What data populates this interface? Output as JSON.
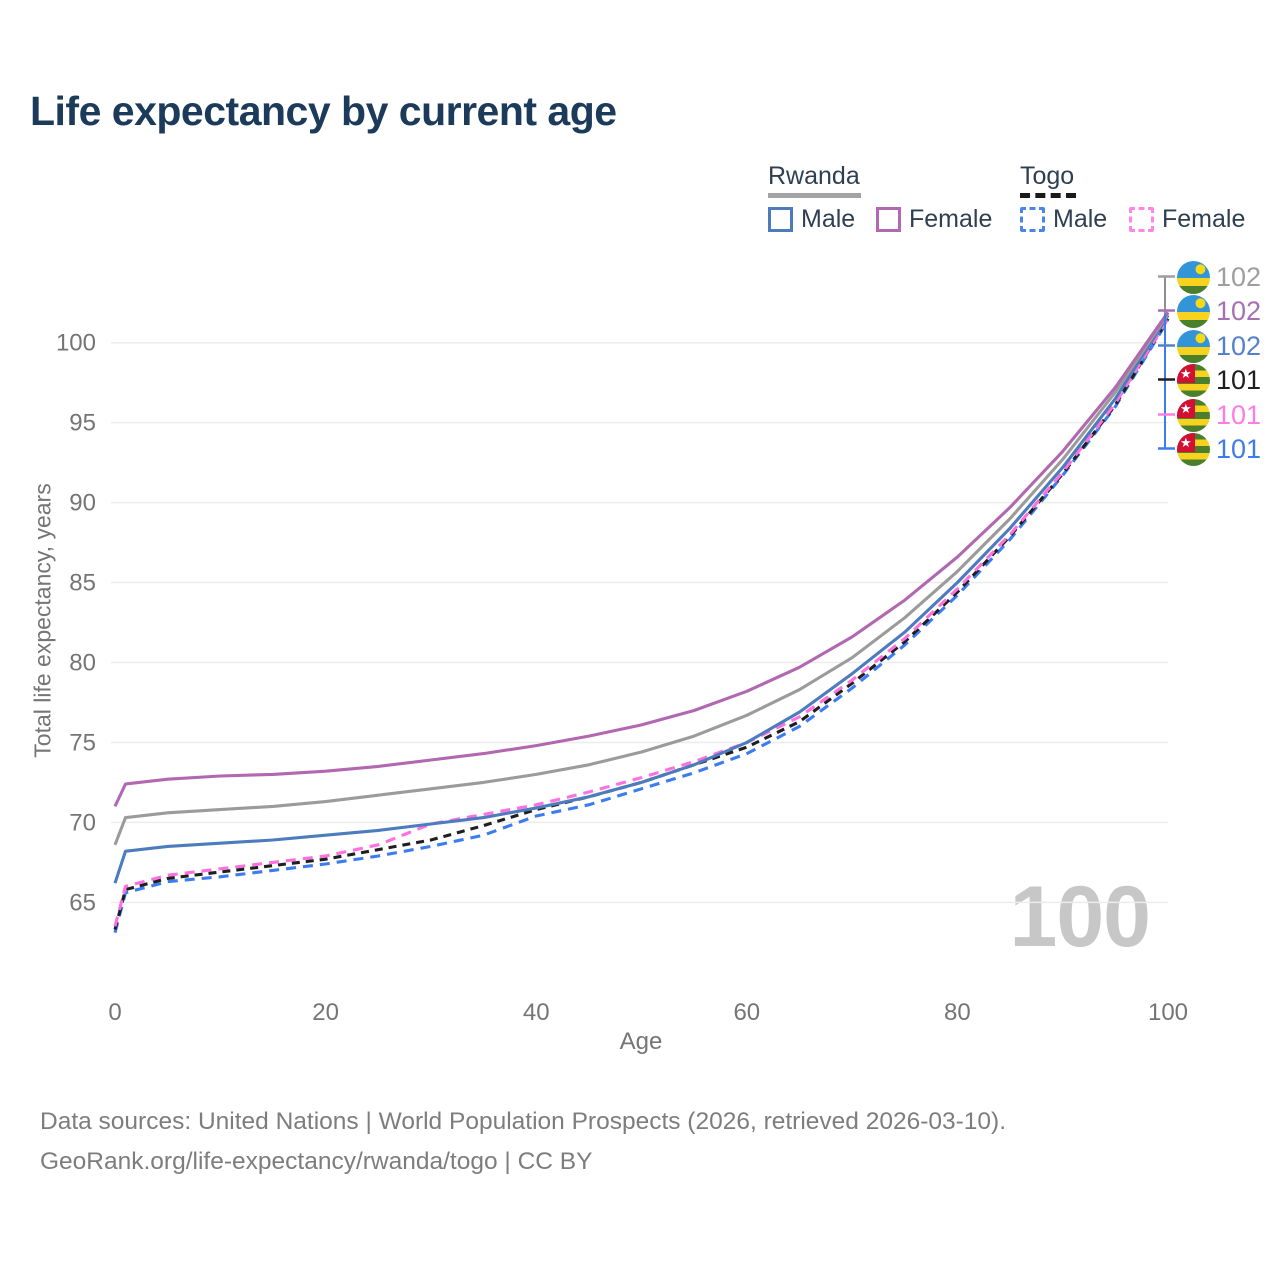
{
  "header": {
    "title": "Life expectancy by current age"
  },
  "legend": {
    "groups": [
      {
        "label": "Rwanda",
        "line_style": "solid",
        "underline_color": "#a3a3a3",
        "items": [
          {
            "label": "Male",
            "color": "#4c7cbe"
          },
          {
            "label": "Female",
            "color": "#b168b1"
          }
        ]
      },
      {
        "label": "Togo",
        "line_style": "dashed",
        "underline_color": "#1a1a1a",
        "items": [
          {
            "label": "Male",
            "color": "#4a86ea"
          },
          {
            "label": "Female",
            "color": "#ff85e6"
          }
        ]
      }
    ]
  },
  "end_labels": [
    {
      "value": "102",
      "series": "Rwanda All",
      "flag": "rwanda",
      "color": "#9e9e9e"
    },
    {
      "value": "102",
      "series": "Rwanda Female",
      "flag": "rwanda",
      "color": "#a76fb5"
    },
    {
      "value": "102",
      "series": "Rwanda Male",
      "flag": "rwanda",
      "color": "#5581c9"
    },
    {
      "value": "101",
      "series": "Togo All",
      "flag": "togo",
      "color": "#1f1f1f"
    },
    {
      "value": "101",
      "series": "Togo Female",
      "flag": "togo",
      "color": "#ff7ce1"
    },
    {
      "value": "101",
      "series": "Togo Male",
      "flag": "togo",
      "color": "#3d7bf0"
    }
  ],
  "leader": {
    "top_color": "#8f8f8f",
    "bottom_color": "#3d7bf0"
  },
  "watermark": {
    "text": "100",
    "color": "#c7c7c7"
  },
  "footer": {
    "line1": "Data sources: United Nations | World Population Prospects (2026, retrieved 2026-03-10).",
    "line2": "GeoRank.org/life-expectancy/rwanda/togo | CC BY"
  },
  "chart_data": {
    "type": "line",
    "title": "Life expectancy by current age",
    "xlabel": "Age",
    "ylabel": "Total life expectancy, years",
    "xlim": [
      0,
      100
    ],
    "ylim": [
      62,
      103
    ],
    "xticks": [
      0,
      20,
      40,
      60,
      80,
      100
    ],
    "yticks": [
      65,
      70,
      75,
      80,
      85,
      90,
      95,
      100
    ],
    "grid": "horizontal-only",
    "legend_position": "top-right",
    "x": [
      0,
      1,
      5,
      10,
      15,
      20,
      25,
      30,
      35,
      40,
      45,
      50,
      55,
      60,
      65,
      70,
      75,
      80,
      85,
      90,
      95,
      100
    ],
    "series": [
      {
        "name": "Togo Male",
        "country": "Togo",
        "sex": "Male",
        "style": "dashed",
        "color": "#3c7cf0",
        "end_value": 101,
        "values": [
          63.1,
          65.6,
          66.3,
          66.6,
          67.0,
          67.4,
          67.9,
          68.5,
          69.2,
          70.4,
          71.1,
          72.1,
          73.1,
          74.3,
          76.0,
          78.4,
          81.1,
          84.2,
          87.7,
          91.7,
          96.0,
          101.4
        ]
      },
      {
        "name": "Togo All",
        "country": "Togo",
        "sex": "All",
        "style": "dashed",
        "color": "#1f1f1f",
        "end_value": 101,
        "values": [
          63.3,
          65.8,
          66.5,
          66.9,
          67.3,
          67.7,
          68.3,
          68.9,
          69.8,
          70.8,
          71.6,
          72.5,
          73.6,
          74.7,
          76.3,
          78.7,
          81.3,
          84.4,
          87.9,
          91.8,
          96.1,
          101.5
        ]
      },
      {
        "name": "Togo Female",
        "country": "Togo",
        "sex": "Female",
        "style": "dashed",
        "color": "#ff70e0",
        "end_value": 101,
        "values": [
          63.5,
          66.0,
          66.7,
          67.1,
          67.5,
          67.9,
          68.6,
          69.9,
          70.5,
          71.1,
          71.9,
          72.8,
          73.8,
          75.0,
          76.6,
          78.9,
          81.5,
          84.6,
          88.0,
          91.9,
          96.2,
          101.5
        ]
      },
      {
        "name": "Rwanda Male",
        "country": "Rwanda",
        "sex": "Male",
        "style": "solid",
        "color": "#4c7cbe",
        "end_value": 102,
        "values": [
          66.2,
          68.2,
          68.5,
          68.7,
          68.9,
          69.2,
          69.5,
          69.9,
          70.3,
          70.9,
          71.6,
          72.5,
          73.6,
          75.0,
          76.9,
          79.3,
          81.9,
          85.0,
          88.4,
          92.2,
          96.5,
          101.7
        ]
      },
      {
        "name": "Rwanda All",
        "country": "Rwanda",
        "sex": "All",
        "style": "solid",
        "color": "#9b9b9b",
        "end_value": 102,
        "values": [
          68.6,
          70.3,
          70.6,
          70.8,
          71.0,
          71.3,
          71.7,
          72.1,
          72.5,
          73.0,
          73.6,
          74.4,
          75.4,
          76.7,
          78.3,
          80.3,
          82.8,
          85.7,
          89.0,
          92.7,
          96.9,
          101.8
        ]
      },
      {
        "name": "Rwanda Female",
        "country": "Rwanda",
        "sex": "Female",
        "style": "solid",
        "color": "#b168b1",
        "end_value": 102,
        "values": [
          71.0,
          72.4,
          72.7,
          72.9,
          73.0,
          73.2,
          73.5,
          73.9,
          74.3,
          74.8,
          75.4,
          76.1,
          77.0,
          78.2,
          79.7,
          81.6,
          83.9,
          86.6,
          89.7,
          93.2,
          97.2,
          101.9
        ]
      }
    ]
  }
}
